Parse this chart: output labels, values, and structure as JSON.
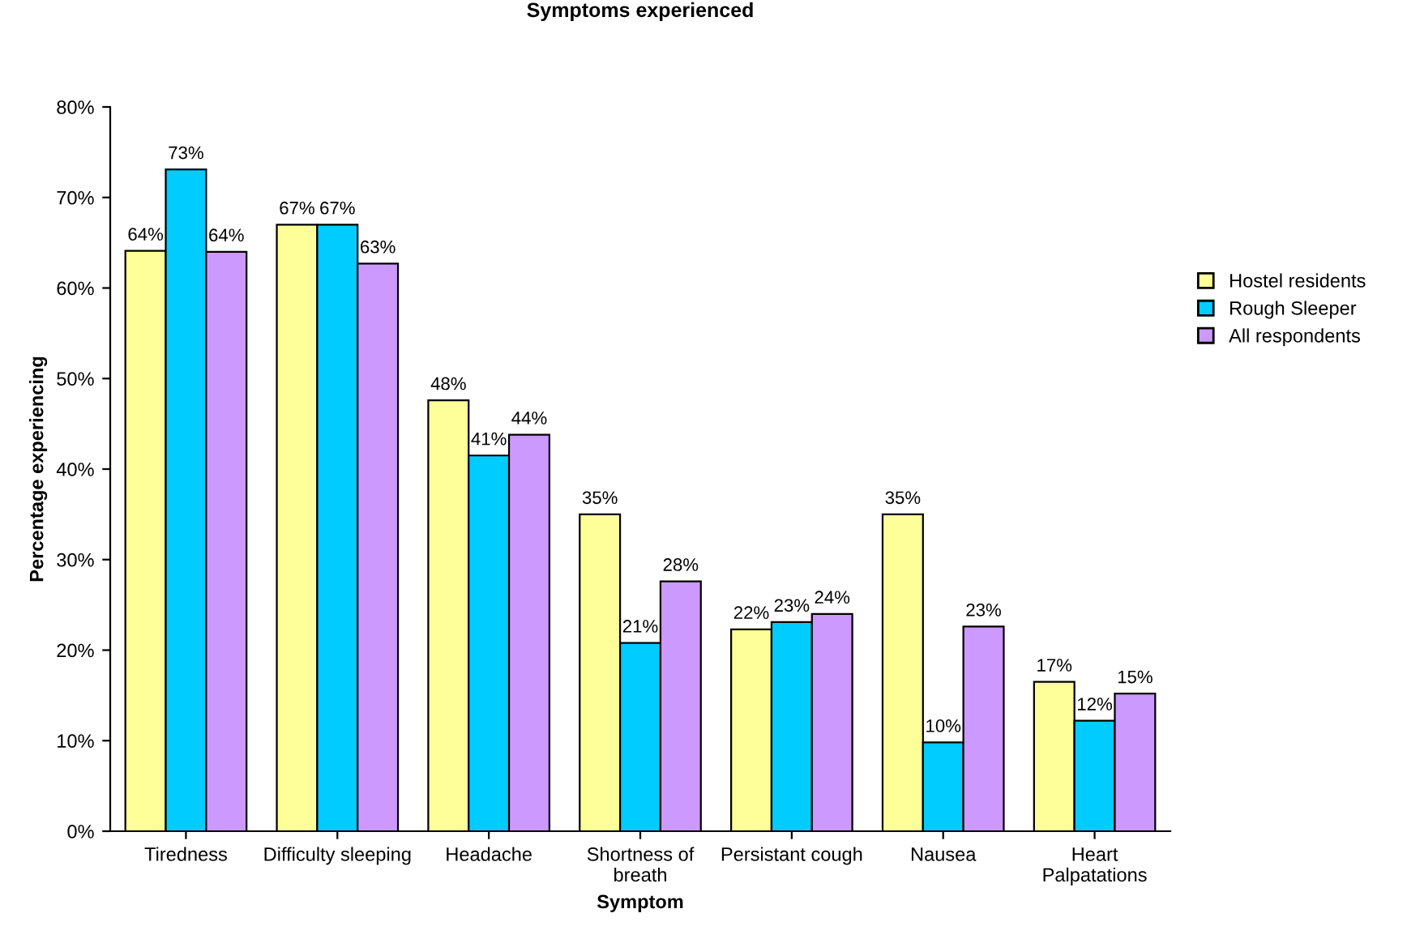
{
  "chart_data": {
    "type": "bar",
    "title": "Symptoms experienced",
    "xlabel": "Symptom",
    "ylabel": "Percentage experiencing",
    "categories": [
      "Tiredness",
      "Difficulty sleeping",
      "Headache",
      "Shortness of\nbreath",
      "Persistant cough",
      "Nausea",
      "Heart\nPalpatations"
    ],
    "series": [
      {
        "name": "Hostel residents",
        "color": "#ffff99",
        "values": [
          64.1,
          67,
          47.6,
          35,
          22.3,
          35,
          16.5
        ],
        "value_labels": [
          "64%",
          "67%",
          "48%",
          "35%",
          "22%",
          "35%",
          "17%"
        ]
      },
      {
        "name": "Rough Sleeper",
        "color": "#00ccff",
        "values": [
          73.1,
          67,
          41.5,
          20.8,
          23.1,
          9.8,
          12.2
        ],
        "value_labels": [
          "73%",
          "67%",
          "41%",
          "21%",
          "23%",
          "10%",
          "12%"
        ]
      },
      {
        "name": "All respondents",
        "color": "#cc99ff",
        "values": [
          64,
          62.7,
          43.8,
          27.6,
          24,
          22.6,
          15.2
        ],
        "value_labels": [
          "64%",
          "63%",
          "44%",
          "28%",
          "24%",
          "23%",
          "15%"
        ]
      }
    ],
    "ylim": [
      0,
      80
    ],
    "yticks": [
      {
        "value": 0,
        "label": "0%"
      },
      {
        "value": 10,
        "label": "10%"
      },
      {
        "value": 20,
        "label": "20%"
      },
      {
        "value": 30,
        "label": "30%"
      },
      {
        "value": 40,
        "label": "40%"
      },
      {
        "value": 50,
        "label": "50%"
      },
      {
        "value": 60,
        "label": "60%"
      },
      {
        "value": 70,
        "label": "70%"
      },
      {
        "value": 80,
        "label": "80%"
      }
    ],
    "grid": false,
    "legend": "right"
  }
}
